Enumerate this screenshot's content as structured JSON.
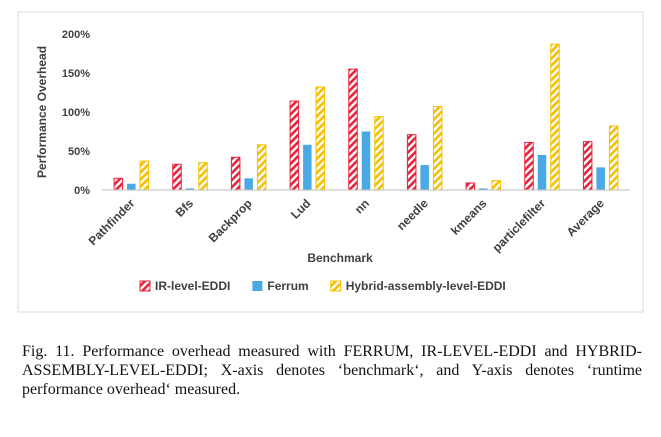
{
  "caption": "Fig. 11. Performance overhead measured with FERRUM, IR-LEVEL-EDDI and HYBRID-ASSEMBLY-LEVEL-EDDI; X-axis denotes ‘benchmark‘, and Y-axis denotes ‘runtime performance overhead‘ measured.",
  "chart_data": {
    "type": "bar",
    "categories": [
      "Pathfinder",
      "Bfs",
      "Backprop",
      "Lud",
      "nn",
      "needle",
      "kmeans",
      "particlefilter",
      "Average"
    ],
    "series": [
      {
        "name": "IR-level-EDDI",
        "values": [
          15,
          33,
          42,
          114,
          155,
          71,
          9,
          61,
          62
        ],
        "color": "#e8243c",
        "pattern": "diagonal-hatch"
      },
      {
        "name": "Ferrum",
        "values": [
          8,
          2,
          15,
          58,
          75,
          32,
          2,
          45,
          29
        ],
        "color": "#4aa9e3",
        "pattern": "solid"
      },
      {
        "name": "Hybrid-assembly-level-EDDI",
        "values": [
          37,
          35,
          58,
          132,
          94,
          107,
          12,
          187,
          82
        ],
        "color": "#f5c000",
        "pattern": "diagonal-hatch"
      }
    ],
    "title": "",
    "xlabel": "Benchmark",
    "ylabel": "Performance Overhead",
    "ylim": [
      0,
      200
    ],
    "yticks": [
      "0%",
      "50%",
      "100%",
      "150%",
      "200%"
    ],
    "grid": false,
    "legend": "bottom"
  }
}
